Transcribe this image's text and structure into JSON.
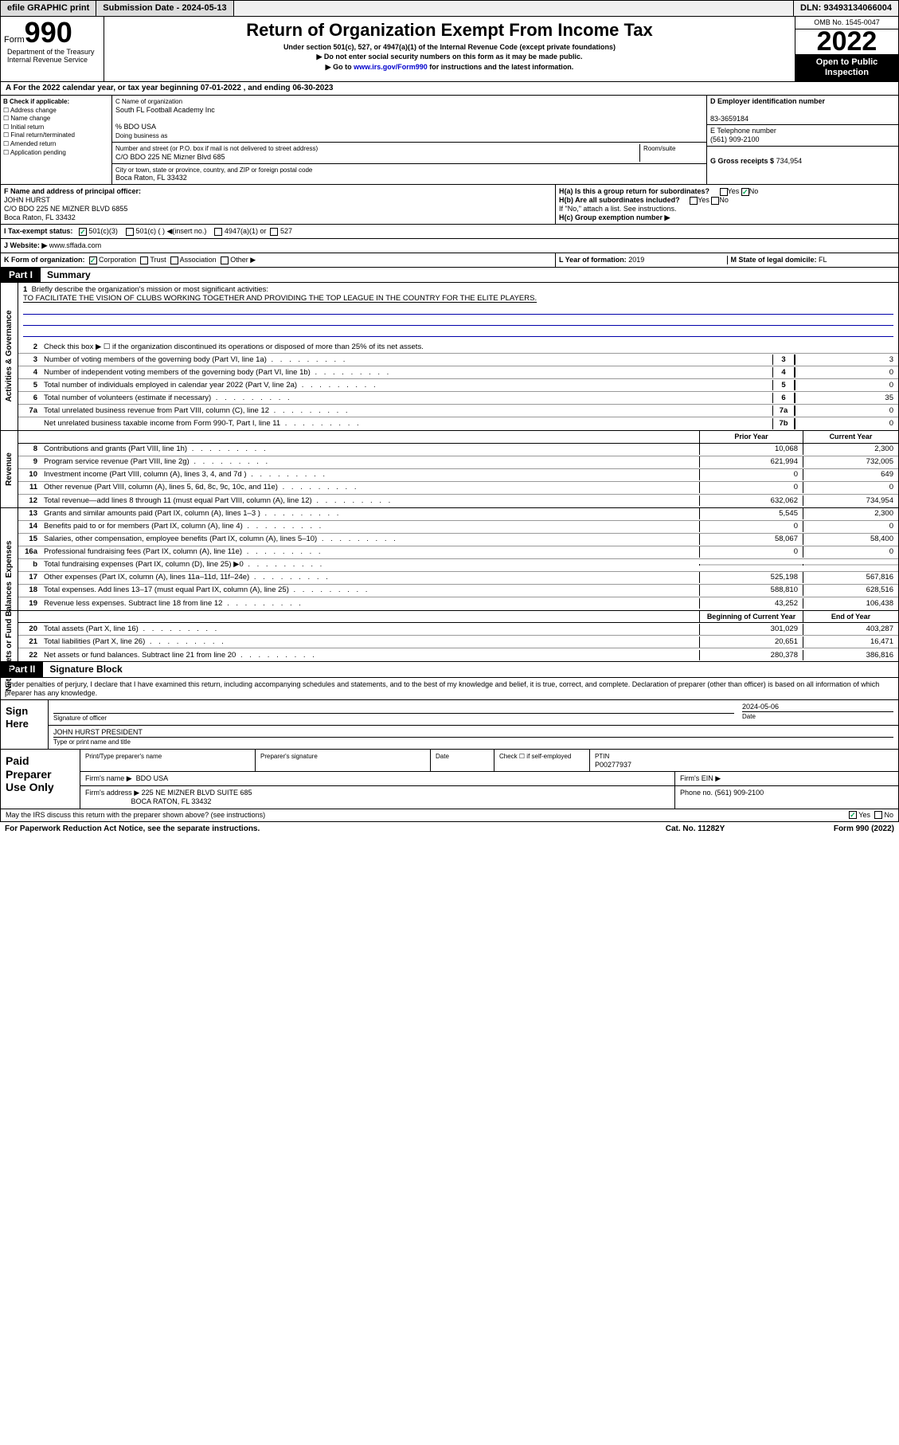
{
  "topbar": {
    "efile": "efile GRAPHIC print",
    "submission_label": "Submission Date - 2024-05-13",
    "dln": "DLN: 93493134066004"
  },
  "header": {
    "form_word": "Form",
    "form_num": "990",
    "title": "Return of Organization Exempt From Income Tax",
    "subtitle1": "Under section 501(c), 527, or 4947(a)(1) of the Internal Revenue Code (except private foundations)",
    "subtitle2": "▶ Do not enter social security numbers on this form as it may be made public.",
    "subtitle3_pre": "▶ Go to ",
    "subtitle3_link": "www.irs.gov/Form990",
    "subtitle3_post": " for instructions and the latest information.",
    "omb": "OMB No. 1545-0047",
    "year": "2022",
    "open": "Open to Public Inspection",
    "dept": "Department of the Treasury Internal Revenue Service"
  },
  "period": {
    "line_a": "A For the 2022 calendar year, or tax year beginning 07-01-2022   , and ending 06-30-2023"
  },
  "col_b": {
    "title": "B Check if applicable:",
    "opts": [
      "Address change",
      "Name change",
      "Initial return",
      "Final return/terminated",
      "Amended return",
      "Application pending"
    ]
  },
  "col_c": {
    "name_label": "C Name of organization",
    "name": "South FL Football Academy Inc",
    "care_of": "% BDO USA",
    "dba_label": "Doing business as",
    "addr_label": "Number and street (or P.O. box if mail is not delivered to street address)",
    "room_label": "Room/suite",
    "addr": "C/O BDO 225 NE Mizner Blvd 685",
    "city_label": "City or town, state or province, country, and ZIP or foreign postal code",
    "city": "Boca Raton, FL  33432"
  },
  "col_d": {
    "d_label": "D Employer identification number",
    "ein": "83-3659184",
    "e_label": "E Telephone number",
    "phone": "(561) 909-2100",
    "g_label": "G Gross receipts $",
    "gross": "734,954"
  },
  "row_f": {
    "f_label": "F  Name and address of principal officer:",
    "officer": "JOHN HURST",
    "officer_addr": "C/O BDO 225 NE MIZNER BLVD 6855",
    "officer_city": "Boca Raton, FL  33432",
    "ha": "H(a)  Is this a group return for subordinates?",
    "hb": "H(b)  Are all subordinates included?",
    "hb_note": "If \"No,\" attach a list. See instructions.",
    "hc": "H(c)  Group exemption number ▶",
    "yes": "Yes",
    "no": "No"
  },
  "row_i": {
    "label": "I    Tax-exempt status:",
    "opt1": "501(c)(3)",
    "opt2": "501(c) (  ) ◀(insert no.)",
    "opt3": "4947(a)(1) or",
    "opt4": "527"
  },
  "row_j": {
    "label": "J   Website: ▶",
    "site": "www.sffada.com"
  },
  "row_k": {
    "label": "K Form of organization:",
    "opts": [
      "Corporation",
      "Trust",
      "Association",
      "Other ▶"
    ],
    "l_label": "L Year of formation:",
    "l_val": "2019",
    "m_label": "M State of legal domicile:",
    "m_val": "FL"
  },
  "part1": {
    "tab": "Part I",
    "title": "Summary"
  },
  "summary": {
    "q1_label": "Briefly describe the organization's mission or most significant activities:",
    "q1_text": "TO FACILITATE THE VISION OF CLUBS WORKING TOGETHER AND PROVIDING THE TOP LEAGUE IN THE COUNTRY FOR THE ELITE PLAYERS.",
    "q2": "Check this box ▶ ☐  if the organization discontinued its operations or disposed of more than 25% of its net assets.",
    "lines_ag": [
      {
        "n": "3",
        "d": "Number of voting members of the governing body (Part VI, line 1a)",
        "b": "3",
        "v": "3"
      },
      {
        "n": "4",
        "d": "Number of independent voting members of the governing body (Part VI, line 1b)",
        "b": "4",
        "v": "0"
      },
      {
        "n": "5",
        "d": "Total number of individuals employed in calendar year 2022 (Part V, line 2a)",
        "b": "5",
        "v": "0"
      },
      {
        "n": "6",
        "d": "Total number of volunteers (estimate if necessary)",
        "b": "6",
        "v": "35"
      },
      {
        "n": "7a",
        "d": "Total unrelated business revenue from Part VIII, column (C), line 12",
        "b": "7a",
        "v": "0"
      },
      {
        "n": "",
        "d": "Net unrelated business taxable income from Form 990-T, Part I, line 11",
        "b": "7b",
        "v": "0"
      }
    ],
    "prior_hdr": "Prior Year",
    "current_hdr": "Current Year",
    "rev_lines": [
      {
        "n": "8",
        "d": "Contributions and grants (Part VIII, line 1h)",
        "p": "10,068",
        "c": "2,300"
      },
      {
        "n": "9",
        "d": "Program service revenue (Part VIII, line 2g)",
        "p": "621,994",
        "c": "732,005"
      },
      {
        "n": "10",
        "d": "Investment income (Part VIII, column (A), lines 3, 4, and 7d )",
        "p": "0",
        "c": "649"
      },
      {
        "n": "11",
        "d": "Other revenue (Part VIII, column (A), lines 5, 6d, 8c, 9c, 10c, and 11e)",
        "p": "0",
        "c": "0"
      },
      {
        "n": "12",
        "d": "Total revenue—add lines 8 through 11 (must equal Part VIII, column (A), line 12)",
        "p": "632,062",
        "c": "734,954"
      }
    ],
    "exp_lines": [
      {
        "n": "13",
        "d": "Grants and similar amounts paid (Part IX, column (A), lines 1–3 )",
        "p": "5,545",
        "c": "2,300"
      },
      {
        "n": "14",
        "d": "Benefits paid to or for members (Part IX, column (A), line 4)",
        "p": "0",
        "c": "0"
      },
      {
        "n": "15",
        "d": "Salaries, other compensation, employee benefits (Part IX, column (A), lines 5–10)",
        "p": "58,067",
        "c": "58,400"
      },
      {
        "n": "16a",
        "d": "Professional fundraising fees (Part IX, column (A), line 11e)",
        "p": "0",
        "c": "0"
      },
      {
        "n": "b",
        "d": "Total fundraising expenses (Part IX, column (D), line 25) ▶0",
        "p": "",
        "c": ""
      },
      {
        "n": "17",
        "d": "Other expenses (Part IX, column (A), lines 11a–11d, 11f–24e)",
        "p": "525,198",
        "c": "567,816"
      },
      {
        "n": "18",
        "d": "Total expenses. Add lines 13–17 (must equal Part IX, column (A), line 25)",
        "p": "588,810",
        "c": "628,516"
      },
      {
        "n": "19",
        "d": "Revenue less expenses. Subtract line 18 from line 12",
        "p": "43,252",
        "c": "106,438"
      }
    ],
    "na_hdr1": "Beginning of Current Year",
    "na_hdr2": "End of Year",
    "na_lines": [
      {
        "n": "20",
        "d": "Total assets (Part X, line 16)",
        "p": "301,029",
        "c": "403,287"
      },
      {
        "n": "21",
        "d": "Total liabilities (Part X, line 26)",
        "p": "20,651",
        "c": "16,471"
      },
      {
        "n": "22",
        "d": "Net assets or fund balances. Subtract line 21 from line 20",
        "p": "280,378",
        "c": "386,816"
      }
    ],
    "side_ag": "Activities & Governance",
    "side_rev": "Revenue",
    "side_exp": "Expenses",
    "side_na": "Net Assets or Fund Balances"
  },
  "part2": {
    "tab": "Part II",
    "title": "Signature Block",
    "decl": "Under penalties of perjury, I declare that I have examined this return, including accompanying schedules and statements, and to the best of my knowledge and belief, it is true, correct, and complete. Declaration of preparer (other than officer) is based on all information of which preparer has any knowledge."
  },
  "sign": {
    "left": "Sign Here",
    "sig_label": "Signature of officer",
    "date_label": "Date",
    "date": "2024-05-06",
    "name": "JOHN HURST PRESIDENT",
    "name_label": "Type or print name and title"
  },
  "paid": {
    "left": "Paid Preparer Use Only",
    "h1": "Print/Type preparer's name",
    "h2": "Preparer's signature",
    "h3": "Date",
    "h4_pre": "Check ☐ if self-employed",
    "h5": "PTIN",
    "ptin": "P00277937",
    "firm_name_label": "Firm's name    ▶",
    "firm_name": "BDO USA",
    "firm_ein_label": "Firm's EIN ▶",
    "firm_addr_label": "Firm's address ▶",
    "firm_addr": "225 NE MIZNER BLVD SUITE 685",
    "firm_city": "BOCA RATON, FL  33432",
    "phone_label": "Phone no.",
    "phone": "(561) 909-2100"
  },
  "footer": {
    "discuss": "May the IRS discuss this return with the preparer shown above? (see instructions)",
    "yes": "Yes",
    "no": "No",
    "paperwork": "For Paperwork Reduction Act Notice, see the separate instructions.",
    "cat": "Cat. No. 11282Y",
    "form": "Form 990 (2022)"
  }
}
